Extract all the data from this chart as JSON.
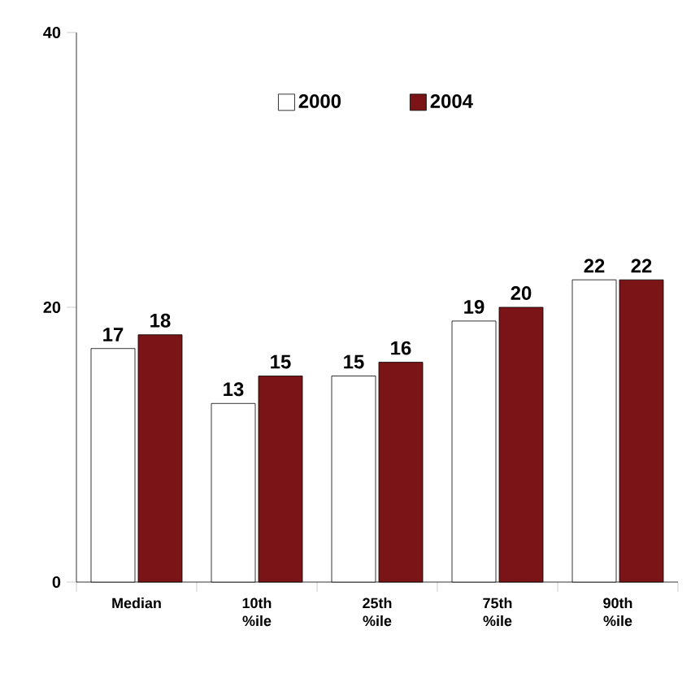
{
  "chart_data": {
    "type": "bar",
    "categories": [
      "Median",
      "10th %ile",
      "25th %ile",
      "75th %ile",
      "90th %ile"
    ],
    "series": [
      {
        "name": "2000",
        "color": "#ffffff",
        "values": [
          17,
          13,
          15,
          19,
          22
        ]
      },
      {
        "name": "2004",
        "color": "#7b1416",
        "values": [
          18,
          15,
          16,
          20,
          22
        ]
      }
    ],
    "ylim": [
      0,
      40
    ],
    "yticks": [
      0,
      20,
      40
    ],
    "data_labels": true,
    "legend": "top",
    "grid": false
  }
}
